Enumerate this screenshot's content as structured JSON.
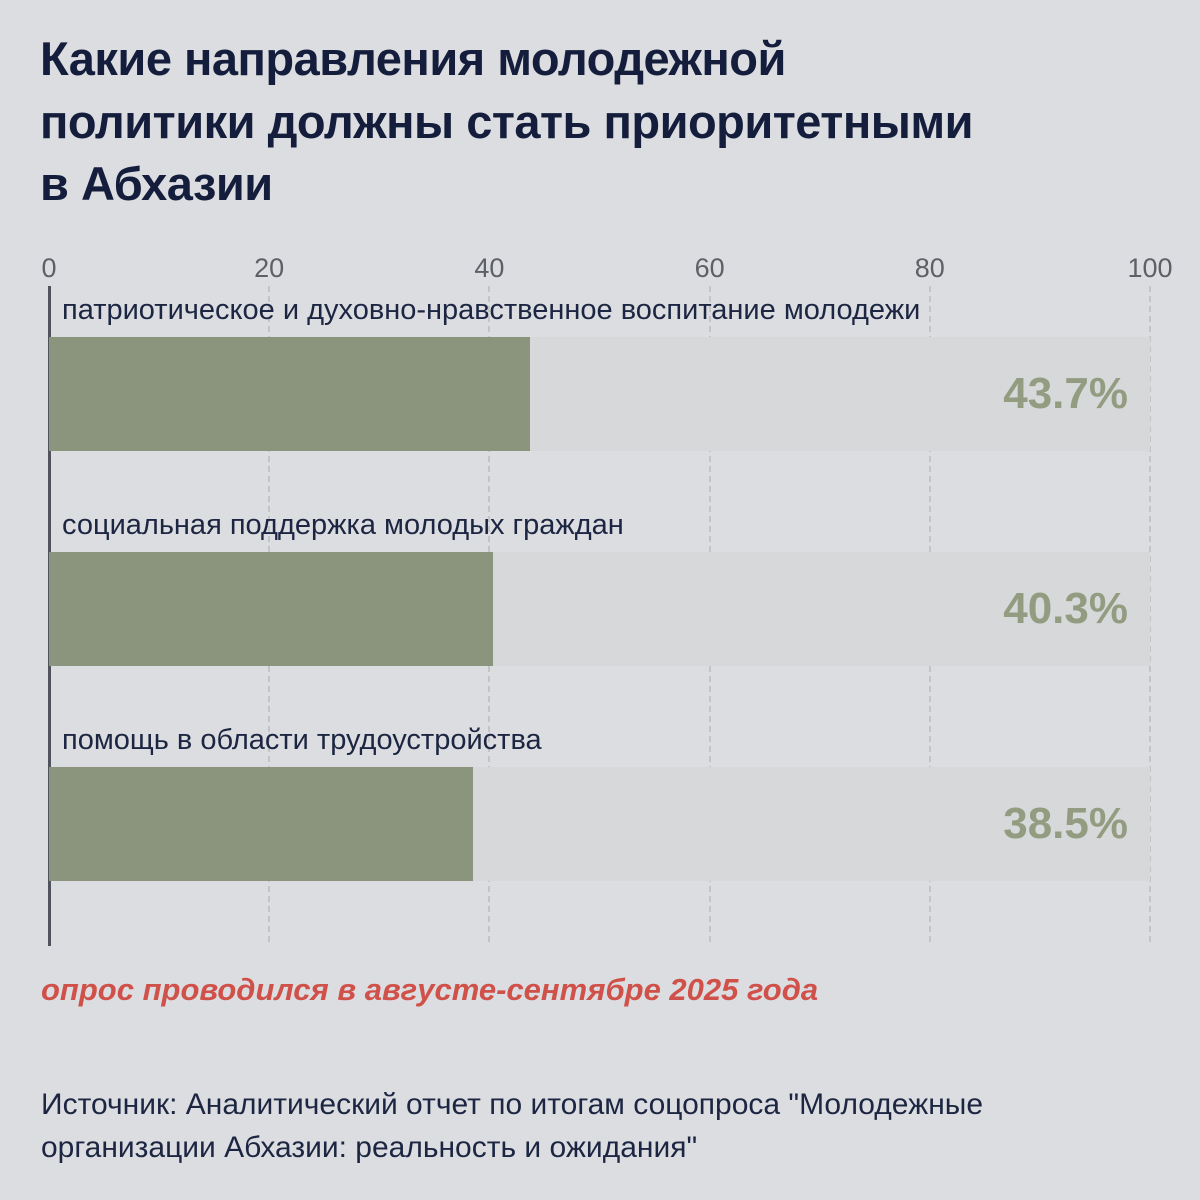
{
  "header": {
    "title": "Какие направления молодежной политики должны стать приоритетными в Абхазии",
    "title_lines": [
      "Какие направления молодежной",
      "политики должны стать приоритетными",
      "в Абхазии"
    ]
  },
  "chart_data": {
    "type": "bar",
    "orientation": "horizontal",
    "title": "Какие направления молодежной политики должны стать приоритетными в Абхазии",
    "categories": [
      "патриотическое и духовно-нравственное воспитание молодежи",
      "социальная поддержка молодых граждан",
      "помощь в области трудоустройства"
    ],
    "values": [
      43.7,
      40.3,
      38.5
    ],
    "value_labels": [
      "43.7%",
      "40.3%",
      "38.5%"
    ],
    "x_ticks": [
      "0",
      "20",
      "40",
      "60",
      "80",
      "100"
    ],
    "x_tick_values": [
      0,
      20,
      40,
      60,
      80,
      100
    ],
    "xlim": [
      0,
      100
    ],
    "xlabel": "",
    "ylabel": "",
    "grid": "vertical-dashed",
    "legend": "none",
    "value_label_position": "inside-right",
    "bar_label_position": "above-bar"
  },
  "footer": {
    "note": "опрос проводился в августе-сентябре 2025 года",
    "source": "Источник: Аналитический отчет по итогам соцопроса \"Молодежные организации Абхазии: реальность и ожидания\"",
    "source_lines": [
      "Источник: Аналитический отчет по итогам соцопроса \"Молодежные",
      "организации Абхазии: реальность и ожидания\""
    ]
  },
  "colors": {
    "background": "#dcdde0",
    "bar": "#8b957d",
    "bar_track": "#d7d8da",
    "value_text": "#939c81",
    "title_text": "#141e3c",
    "category_text": "#1c2642",
    "tick_text": "#5d6067",
    "axis_line": "#50535b",
    "gridline": "#c3c4c8",
    "note_text": "#d05149"
  }
}
